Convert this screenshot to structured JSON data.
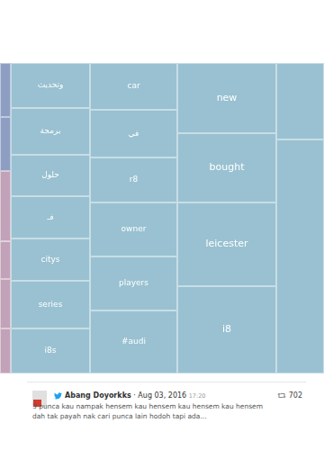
{
  "chart_data": {
    "type": "treemap",
    "groups": [
      {
        "colors": [
          "#8e9ec3",
          "#8e9ec3",
          "#c2a2b9",
          "#c2a2b9",
          "#c2a2b9",
          "#c2a2b9"
        ],
        "cells": [
          {
            "label": null,
            "value": 7.2
          },
          {
            "label": null,
            "value": 7.2
          },
          {
            "label": null,
            "value": 9.4
          },
          {
            "label": null,
            "value": 5.0
          },
          {
            "label": null,
            "value": 6.6
          },
          {
            "label": null,
            "value": 6.0
          }
        ]
      },
      {
        "color": "#99c1d1",
        "cells": [
          {
            "label": "وتحديث",
            "value": 44.0
          },
          {
            "label": "برمجة",
            "value": 45.8
          },
          {
            "label": "حلول",
            "value": 40.5
          },
          {
            "label": "فـ",
            "value": 41.4
          },
          {
            "label": "citys",
            "value": 41.4
          },
          {
            "label": "series",
            "value": 46.6
          },
          {
            "label": "i8s",
            "value": 44.0
          }
        ]
      },
      {
        "color": "#99c1d1",
        "cells": [
          {
            "label": "car",
            "value": 50.4
          },
          {
            "label": "في",
            "value": 51.4
          },
          {
            "label": "r8",
            "value": 48.5
          },
          {
            "label": "owner",
            "value": 58.2
          },
          {
            "label": "players",
            "value": 58.2
          },
          {
            "label": "#audi",
            "value": 67.9
          }
        ]
      },
      {
        "color": "#99c1d1",
        "cells": [
          {
            "label": "new",
            "value": 85.8
          },
          {
            "label": "bought",
            "value": 84.7
          },
          {
            "label": "leicester",
            "value": 102.3
          },
          {
            "label": "i8",
            "value": 106.7
          }
        ]
      },
      {
        "color": "#99c1d1",
        "cells": [
          {
            "label": null,
            "value": 45.1
          },
          {
            "label": null,
            "value": 137.8
          }
        ]
      }
    ]
  },
  "tweet": {
    "author": "Abang Doyorkks",
    "separator": "·",
    "date": "Aug 03, 2016",
    "time": "17:20",
    "retweets": 702,
    "text_lines": [
      "3 punca kau nampak hensem kau hensem kau hensem kau hensem",
      "dah tak payah nak cari punca lain hodoh tapi ada..."
    ]
  }
}
